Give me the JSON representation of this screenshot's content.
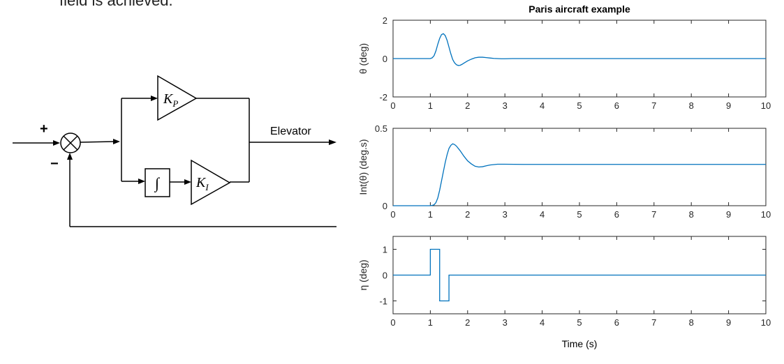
{
  "top_text": "field is achieved.",
  "block_diagram": {
    "plus_sign": "+",
    "minus_sign": "−",
    "output_label": "Elevator",
    "kp_main": "K",
    "kp_sub": "P",
    "ki_main": "K",
    "ki_sub": "I",
    "integrator_symbol": "∫"
  },
  "figure": {
    "title": "Paris aircraft example",
    "xlabel": "Time (s)",
    "x_ticks": [
      "0",
      "1",
      "2",
      "3",
      "4",
      "5",
      "6",
      "7",
      "8",
      "9",
      "10"
    ],
    "line_color": "#0072BD"
  },
  "chart_data": [
    {
      "type": "line",
      "name": "theta",
      "ylabel": "θ (deg)",
      "xlim": [
        0,
        10
      ],
      "ylim": [
        -2,
        2
      ],
      "y_ticks": [
        "-2",
        "0",
        "2"
      ],
      "y_tick_values": [
        -2,
        0,
        2
      ],
      "x": [
        0,
        0.5,
        1.0,
        1.05,
        1.1,
        1.15,
        1.2,
        1.25,
        1.3,
        1.35,
        1.4,
        1.45,
        1.5,
        1.55,
        1.6,
        1.65,
        1.7,
        1.75,
        1.8,
        1.85,
        1.9,
        2.0,
        2.1,
        2.2,
        2.3,
        2.4,
        2.5,
        2.6,
        2.7,
        2.8,
        2.9,
        3.0,
        3.2,
        3.5,
        4,
        5,
        6,
        7,
        8,
        9,
        10
      ],
      "y": [
        0,
        0,
        0,
        0.04,
        0.15,
        0.4,
        0.75,
        1.05,
        1.25,
        1.3,
        1.2,
        0.95,
        0.6,
        0.25,
        -0.05,
        -0.22,
        -0.32,
        -0.36,
        -0.35,
        -0.3,
        -0.24,
        -0.12,
        -0.03,
        0.04,
        0.07,
        0.07,
        0.05,
        0.03,
        0.01,
        0.0,
        -0.01,
        -0.01,
        0,
        0,
        0,
        0,
        0,
        0,
        0,
        0,
        0
      ]
    },
    {
      "type": "line",
      "name": "int_theta",
      "ylabel": "Int(θ) (deg.s)",
      "xlim": [
        0,
        10
      ],
      "ylim": [
        0,
        0.5
      ],
      "y_ticks": [
        "0",
        "0.5"
      ],
      "y_tick_values": [
        0,
        0.5
      ],
      "x": [
        0,
        0.5,
        1.0,
        1.05,
        1.1,
        1.15,
        1.2,
        1.25,
        1.3,
        1.35,
        1.4,
        1.45,
        1.5,
        1.55,
        1.6,
        1.65,
        1.7,
        1.8,
        1.9,
        2.0,
        2.1,
        2.2,
        2.3,
        2.4,
        2.5,
        2.6,
        2.8,
        3.0,
        3.5,
        4,
        5,
        6,
        7,
        8,
        9,
        10
      ],
      "y": [
        0,
        0,
        0,
        0.002,
        0.006,
        0.02,
        0.05,
        0.1,
        0.16,
        0.22,
        0.28,
        0.33,
        0.37,
        0.39,
        0.4,
        0.395,
        0.385,
        0.355,
        0.32,
        0.29,
        0.27,
        0.255,
        0.25,
        0.252,
        0.258,
        0.263,
        0.268,
        0.268,
        0.267,
        0.267,
        0.267,
        0.267,
        0.267,
        0.267,
        0.267,
        0.267
      ]
    },
    {
      "type": "line",
      "name": "eta",
      "ylabel": "η (deg)",
      "xlim": [
        0,
        10
      ],
      "ylim": [
        -1.5,
        1.5
      ],
      "y_ticks": [
        "-1",
        "0",
        "1"
      ],
      "y_tick_values": [
        -1,
        0,
        1
      ],
      "x": [
        0,
        1.0,
        1.0,
        1.25,
        1.25,
        1.5,
        1.5,
        10
      ],
      "y": [
        0,
        0,
        1,
        1,
        -1,
        -1,
        0,
        0
      ]
    }
  ]
}
